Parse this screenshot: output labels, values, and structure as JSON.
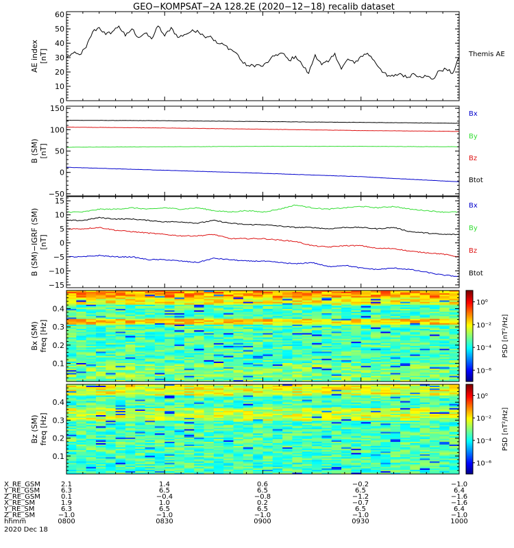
{
  "title": "GEO−KOMPSAT−2A 128.2E (2020−12−18) recalib dataset",
  "colors": {
    "black": "#000000",
    "green": "#33dd33",
    "red": "#dd1111",
    "blue": "#0000cc"
  },
  "chart_data": [
    {
      "id": "ae",
      "type": "line",
      "ylabel": "AE index",
      "yunit": "[nT]",
      "ylim": [
        0,
        62
      ],
      "yticks": [
        0,
        10,
        20,
        30,
        40,
        50,
        60
      ],
      "xlim": [
        0,
        120
      ],
      "legend": [
        "Themis AE"
      ],
      "series": [
        {
          "name": "Themis AE",
          "color": "#000000",
          "x": [
            0,
            2,
            4,
            6,
            8,
            10,
            12,
            14,
            16,
            18,
            20,
            22,
            24,
            26,
            28,
            30,
            32,
            34,
            36,
            38,
            40,
            42,
            44,
            46,
            48,
            50,
            52,
            54,
            56,
            58,
            60,
            62,
            64,
            66,
            68,
            70,
            72,
            74,
            76,
            78,
            80,
            82,
            84,
            86,
            88,
            90,
            92,
            94,
            96,
            98,
            100,
            102,
            104,
            106,
            108,
            110,
            112,
            114,
            116,
            118,
            120
          ],
          "values": [
            30,
            33,
            32,
            37,
            48,
            51,
            46,
            48,
            52,
            45,
            50,
            44,
            47,
            43,
            52,
            45,
            51,
            44,
            46,
            48,
            49,
            45,
            45,
            40,
            39,
            36,
            33,
            26,
            24,
            25,
            24,
            28,
            32,
            33,
            28,
            31,
            25,
            19,
            32,
            25,
            27,
            33,
            22,
            29,
            26,
            31,
            33,
            28,
            22,
            17,
            17,
            19,
            16,
            19,
            17,
            17,
            15,
            21,
            22,
            19,
            30
          ]
        }
      ]
    },
    {
      "id": "bsm",
      "type": "line",
      "ylabel": "B (SM)",
      "yunit": "[nT]",
      "ylim": [
        -55,
        155
      ],
      "yticks": [
        -50,
        0,
        50,
        100,
        150
      ],
      "xlim": [
        0,
        120
      ],
      "legend": [
        "Bx",
        "By",
        "Bz",
        "Btot"
      ],
      "series": [
        {
          "name": "Btot",
          "color": "#000000",
          "x": [
            0,
            30,
            60,
            90,
            120
          ],
          "values": [
            122,
            121,
            119,
            117,
            115
          ]
        },
        {
          "name": "Bz",
          "color": "#dd1111",
          "x": [
            0,
            30,
            60,
            90,
            120
          ],
          "values": [
            106,
            104,
            101,
            98,
            96
          ]
        },
        {
          "name": "By",
          "color": "#33dd33",
          "x": [
            0,
            30,
            60,
            90,
            120
          ],
          "values": [
            59,
            60,
            61,
            61,
            60
          ]
        },
        {
          "name": "Bx",
          "color": "#0000cc",
          "x": [
            0,
            30,
            60,
            90,
            120
          ],
          "values": [
            12,
            5,
            -2,
            -10,
            -22
          ]
        }
      ]
    },
    {
      "id": "bsmigrf",
      "type": "line",
      "ylabel": "B (SM)−IGRF (SM)",
      "yunit": "[nT]",
      "ylim": [
        -16,
        16.5
      ],
      "yticks": [
        -15,
        -10,
        -5,
        0,
        5,
        10,
        15
      ],
      "xlim": [
        0,
        120
      ],
      "legend": [
        "Bx",
        "By",
        "Bz",
        "Btot"
      ],
      "series": [
        {
          "name": "By",
          "color": "#33dd33",
          "x": [
            0,
            5,
            10,
            15,
            20,
            25,
            30,
            35,
            40,
            45,
            50,
            55,
            60,
            65,
            70,
            75,
            80,
            85,
            90,
            95,
            100,
            105,
            110,
            115,
            120
          ],
          "values": [
            11,
            11,
            12,
            12,
            12.5,
            12,
            12.5,
            12,
            12.5,
            11.5,
            11,
            11.5,
            11,
            12,
            13.5,
            12.5,
            12,
            12.5,
            13,
            12.5,
            13,
            12,
            11.5,
            11,
            11
          ]
        },
        {
          "name": "Btot",
          "color": "#000000",
          "x": [
            0,
            5,
            10,
            15,
            20,
            25,
            30,
            35,
            40,
            45,
            50,
            55,
            60,
            65,
            70,
            75,
            80,
            85,
            90,
            95,
            100,
            105,
            110,
            115,
            120
          ],
          "values": [
            8,
            8,
            9,
            8.5,
            8.5,
            8,
            7.5,
            7.5,
            7,
            8,
            7,
            6.5,
            6.5,
            6,
            5.5,
            5.5,
            5,
            5.5,
            5.5,
            5,
            5.5,
            4,
            3.5,
            3,
            3
          ]
        },
        {
          "name": "Bz",
          "color": "#dd1111",
          "x": [
            0,
            5,
            10,
            15,
            20,
            25,
            30,
            35,
            40,
            45,
            50,
            55,
            60,
            65,
            70,
            75,
            80,
            85,
            90,
            95,
            100,
            105,
            110,
            115,
            120
          ],
          "values": [
            5,
            5,
            5.5,
            4.5,
            4,
            3.5,
            3,
            2.5,
            2.5,
            3,
            1.5,
            1.5,
            1.5,
            1,
            0.5,
            -1,
            -1.5,
            -1,
            -1,
            -2,
            -2,
            -3,
            -3.5,
            -4,
            -5
          ]
        },
        {
          "name": "Bx",
          "color": "#0000cc",
          "x": [
            0,
            5,
            10,
            15,
            20,
            25,
            30,
            35,
            40,
            45,
            50,
            55,
            60,
            65,
            70,
            75,
            80,
            85,
            90,
            95,
            100,
            105,
            110,
            115,
            120
          ],
          "values": [
            -5,
            -5,
            -4.5,
            -5,
            -5,
            -6,
            -6,
            -6.5,
            -7,
            -5.5,
            -6,
            -6.5,
            -6.5,
            -7,
            -7.5,
            -7,
            -8.5,
            -8,
            -9,
            -9.5,
            -9,
            -9.5,
            -10.5,
            -11.5,
            -12
          ]
        }
      ]
    },
    {
      "id": "spec_bx",
      "type": "heatmap",
      "ylabel": "Bx (SM)",
      "yunit": "freq  [Hz]",
      "ylim": [
        0,
        0.5
      ],
      "yticks": [
        0.1,
        0.2,
        0.3,
        0.4
      ],
      "xlim": [
        0,
        120
      ],
      "colorbar": {
        "label": "PSD [nT²/Hz]",
        "ticks": [
          "10⁰",
          "10⁻²",
          "10⁻⁴",
          "10⁻⁶"
        ],
        "range_log": [
          -7,
          1
        ]
      }
    },
    {
      "id": "spec_bz",
      "type": "heatmap",
      "ylabel": "Bz (SM)",
      "yunit": "freq  [Hz]",
      "ylim": [
        0,
        0.5
      ],
      "yticks": [
        0.1,
        0.2,
        0.3,
        0.4
      ],
      "xlim": [
        0,
        120
      ],
      "colorbar": {
        "label": "PSD [nT²/Hz]",
        "ticks": [
          "10⁰",
          "10⁻²",
          "10⁻⁴",
          "10⁻⁶"
        ],
        "range_log": [
          -7,
          1
        ]
      }
    }
  ],
  "ephemeris": {
    "rows": [
      {
        "label": "X_RE_GSM",
        "values": [
          "2.1",
          "1.4",
          "0.6",
          "−0.2",
          "−1.0"
        ]
      },
      {
        "label": "Y_RE_GSM",
        "values": [
          "6.3",
          "6.5",
          "6.5",
          "6.5",
          "6.4"
        ]
      },
      {
        "label": "Z_RE_GSM",
        "values": [
          "0.1",
          "−0.4",
          "−0.8",
          "−1.2",
          "−1.6"
        ]
      },
      {
        "label": "X_RE_SM",
        "values": [
          "1.9",
          "1.0",
          "0.2",
          "−0.7",
          "−1.6"
        ]
      },
      {
        "label": "Y_RE_SM",
        "values": [
          "6.3",
          "6.5",
          "6.5",
          "6.5",
          "6.4"
        ]
      },
      {
        "label": "Z_RE_SM",
        "values": [
          "−1.0",
          "−1.0",
          "−1.0",
          "−1.0",
          "−1.0"
        ]
      },
      {
        "label": "hhmm",
        "values": [
          "0800",
          "0830",
          "0900",
          "0930",
          "1000"
        ]
      }
    ],
    "date": "2020 Dec 18"
  }
}
